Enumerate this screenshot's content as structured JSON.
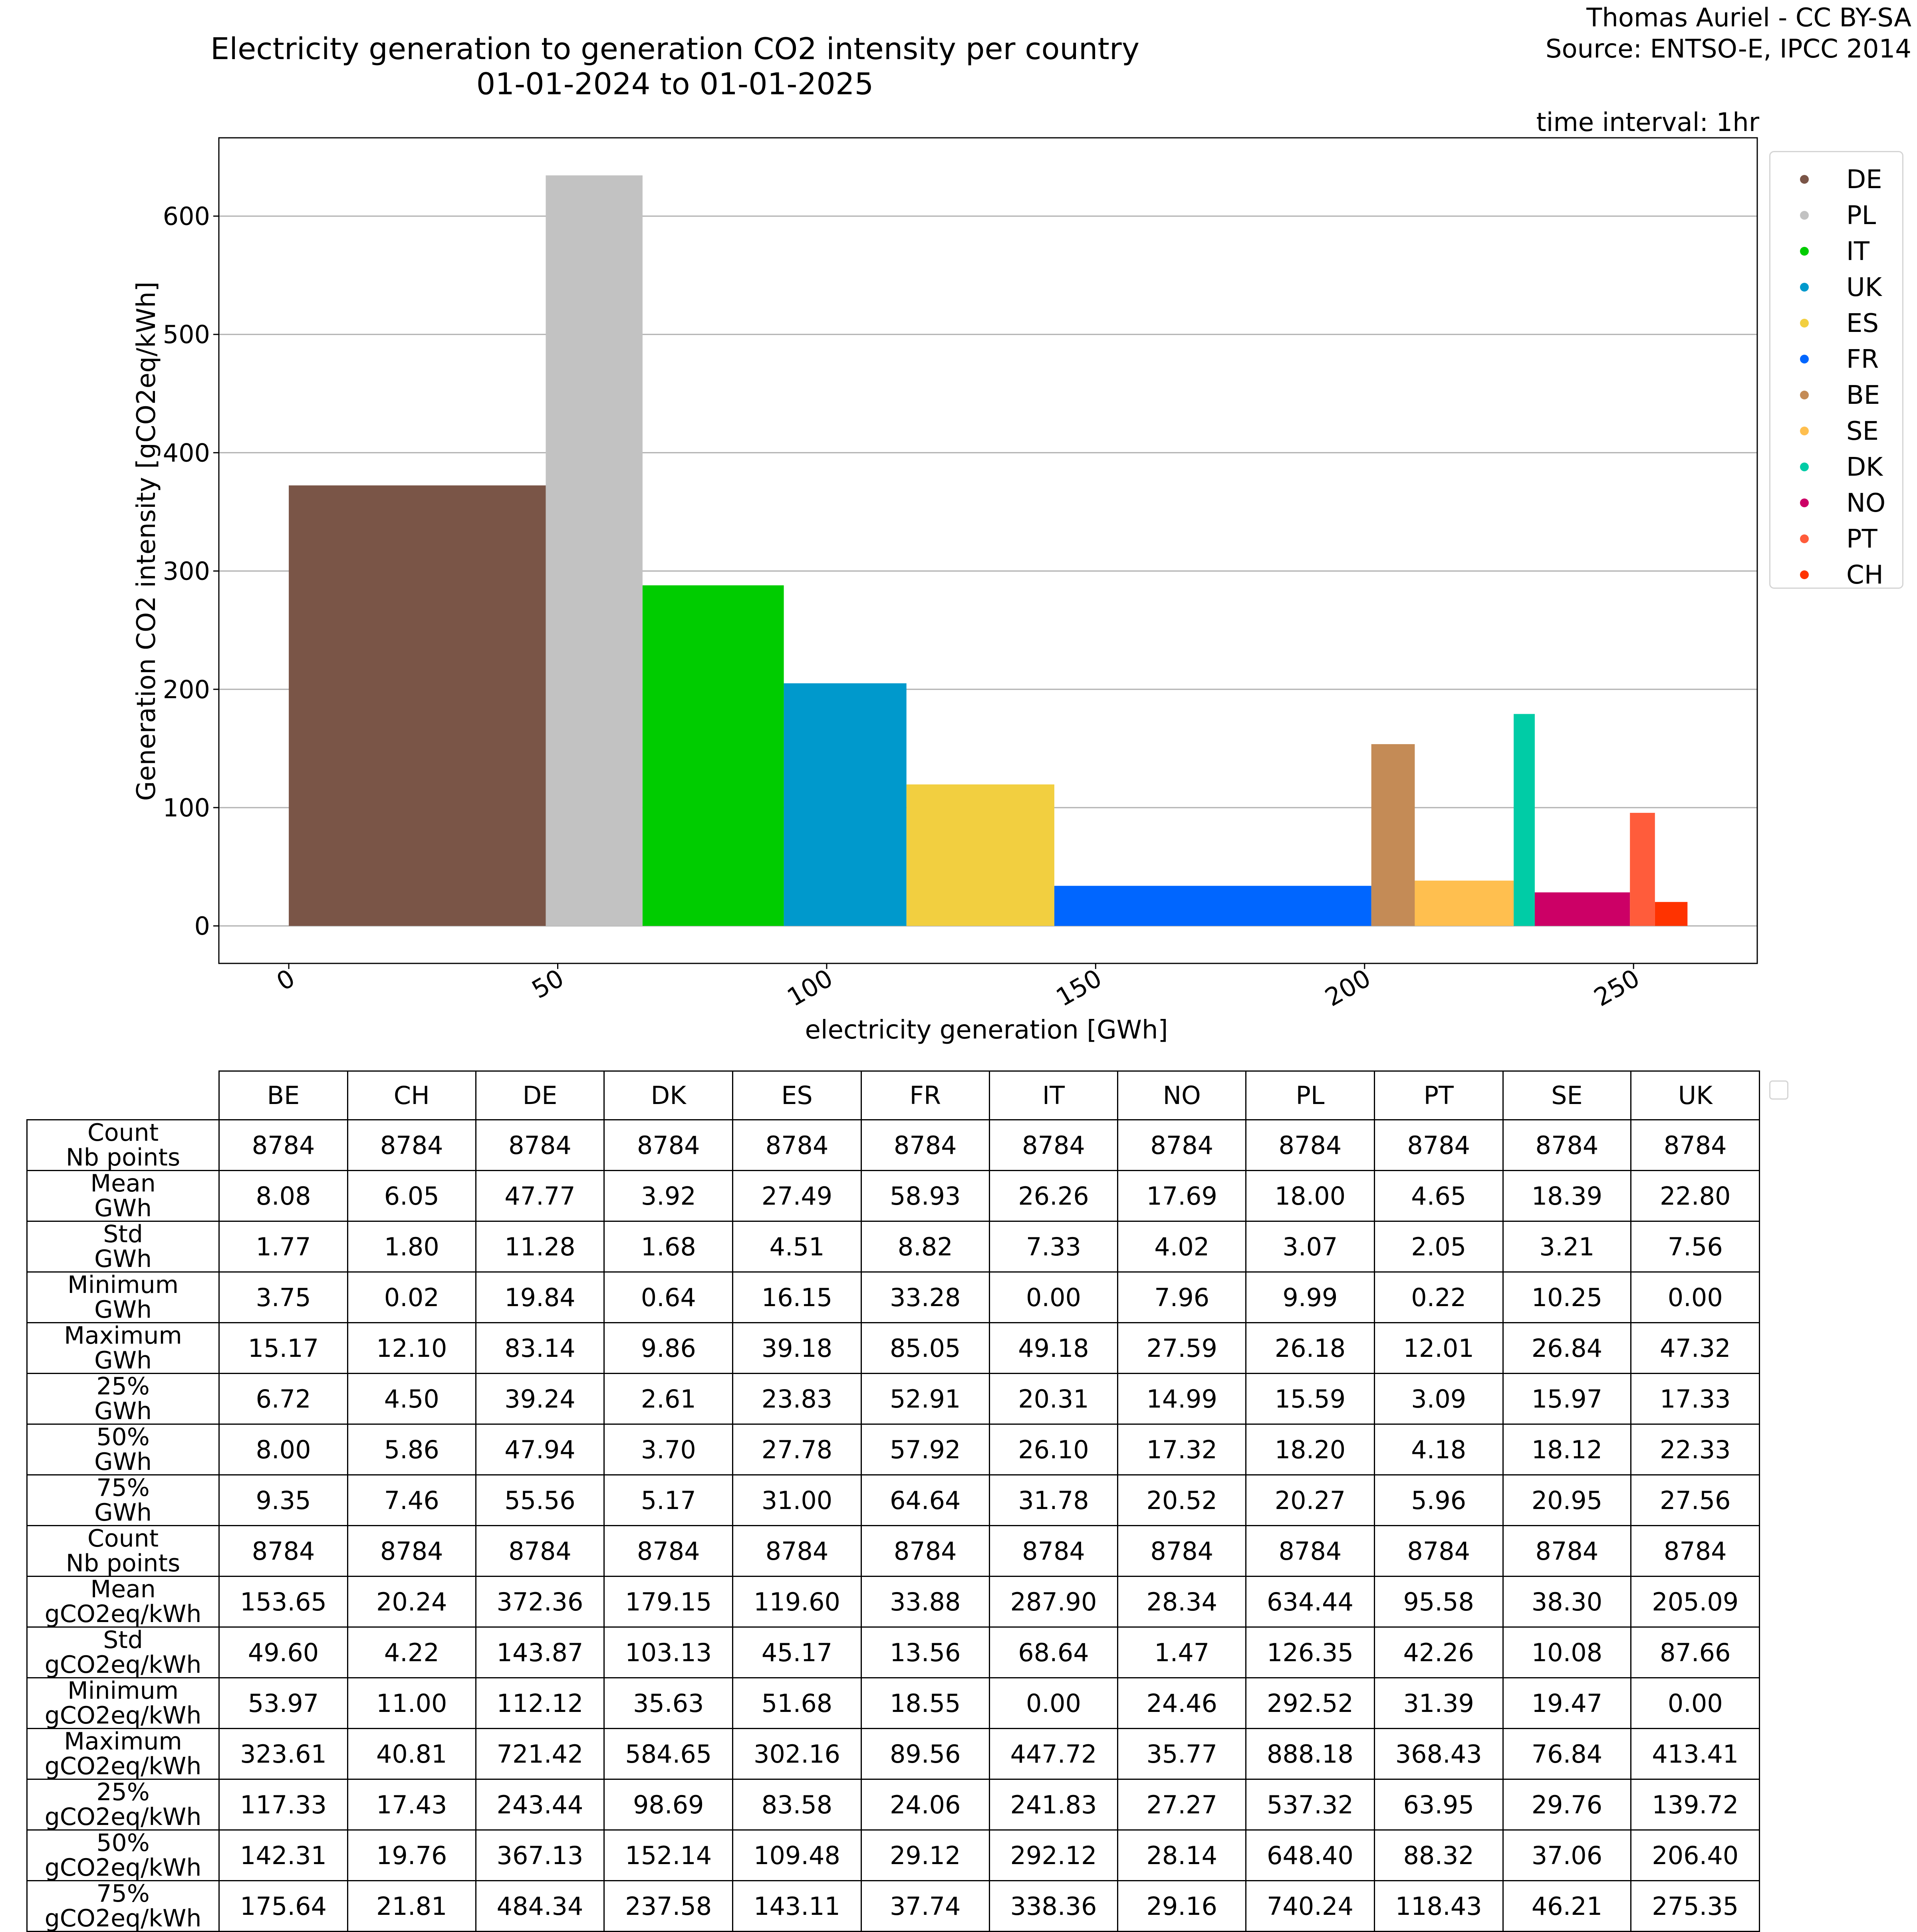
{
  "header": {
    "title_line1": "Electricity generation to generation CO2 intensity per country",
    "title_line2": "01-01-2024 to 01-01-2025",
    "credit_line1": "Thomas Auriel - CC BY-SA",
    "credit_line2": "Source: ENTSO-E, IPCC 2014",
    "interval": "time interval: 1hr"
  },
  "chart_data": {
    "type": "bar",
    "title": "Electricity generation to generation CO2 intensity per country",
    "subtitle": "01-01-2024 to 01-01-2025",
    "xlabel": "electricity generation [GWh]",
    "ylabel": "Generation CO2 intensity [gCO2eq/kWh]",
    "xlim": [
      -13,
      273
    ],
    "ylim": [
      -31.7,
      666.2
    ],
    "xticks": [
      0,
      50,
      100,
      150,
      200,
      250
    ],
    "yticks": [
      0,
      100,
      200,
      300,
      400,
      500,
      600
    ],
    "grid": "y",
    "legend_position": "right",
    "series": [
      {
        "name": "DE",
        "width": 47.77,
        "value": 372.36,
        "color": "#7a5547"
      },
      {
        "name": "PL",
        "width": 18.0,
        "value": 634.44,
        "color": "#c2c2c2"
      },
      {
        "name": "IT",
        "width": 26.26,
        "value": 287.9,
        "color": "#00cc00"
      },
      {
        "name": "UK",
        "width": 22.8,
        "value": 205.09,
        "color": "#0099cc"
      },
      {
        "name": "ES",
        "width": 27.49,
        "value": 119.6,
        "color": "#f2cf40"
      },
      {
        "name": "FR",
        "width": 58.93,
        "value": 33.88,
        "color": "#0066ff"
      },
      {
        "name": "BE",
        "width": 8.08,
        "value": 153.65,
        "color": "#c48b56"
      },
      {
        "name": "SE",
        "width": 18.39,
        "value": 38.3,
        "color": "#ffbf4f"
      },
      {
        "name": "DK",
        "width": 3.92,
        "value": 179.15,
        "color": "#00cca6"
      },
      {
        "name": "NO",
        "width": 17.69,
        "value": 28.34,
        "color": "#cc0066"
      },
      {
        "name": "PT",
        "width": 4.65,
        "value": 95.58,
        "color": "#ff5c3b"
      },
      {
        "name": "CH",
        "width": 6.05,
        "value": 20.24,
        "color": "#ff3300"
      }
    ]
  },
  "table": {
    "columns": [
      "BE",
      "CH",
      "DE",
      "DK",
      "ES",
      "FR",
      "IT",
      "NO",
      "PL",
      "PT",
      "SE",
      "UK"
    ],
    "rows": [
      {
        "label1": "Count",
        "label2": "Nb points",
        "values": [
          "8784",
          "8784",
          "8784",
          "8784",
          "8784",
          "8784",
          "8784",
          "8784",
          "8784",
          "8784",
          "8784",
          "8784"
        ]
      },
      {
        "label1": "Mean",
        "label2": "GWh",
        "values": [
          "8.08",
          "6.05",
          "47.77",
          "3.92",
          "27.49",
          "58.93",
          "26.26",
          "17.69",
          "18.00",
          "4.65",
          "18.39",
          "22.80"
        ]
      },
      {
        "label1": "Std",
        "label2": "GWh",
        "values": [
          "1.77",
          "1.80",
          "11.28",
          "1.68",
          "4.51",
          "8.82",
          "7.33",
          "4.02",
          "3.07",
          "2.05",
          "3.21",
          "7.56"
        ]
      },
      {
        "label1": "Minimum",
        "label2": "GWh",
        "values": [
          "3.75",
          "0.02",
          "19.84",
          "0.64",
          "16.15",
          "33.28",
          "0.00",
          "7.96",
          "9.99",
          "0.22",
          "10.25",
          "0.00"
        ]
      },
      {
        "label1": "Maximum",
        "label2": "GWh",
        "values": [
          "15.17",
          "12.10",
          "83.14",
          "9.86",
          "39.18",
          "85.05",
          "49.18",
          "27.59",
          "26.18",
          "12.01",
          "26.84",
          "47.32"
        ]
      },
      {
        "label1": "25%",
        "label2": "GWh",
        "values": [
          "6.72",
          "4.50",
          "39.24",
          "2.61",
          "23.83",
          "52.91",
          "20.31",
          "14.99",
          "15.59",
          "3.09",
          "15.97",
          "17.33"
        ]
      },
      {
        "label1": "50%",
        "label2": "GWh",
        "values": [
          "8.00",
          "5.86",
          "47.94",
          "3.70",
          "27.78",
          "57.92",
          "26.10",
          "17.32",
          "18.20",
          "4.18",
          "18.12",
          "22.33"
        ]
      },
      {
        "label1": "75%",
        "label2": "GWh",
        "values": [
          "9.35",
          "7.46",
          "55.56",
          "5.17",
          "31.00",
          "64.64",
          "31.78",
          "20.52",
          "20.27",
          "5.96",
          "20.95",
          "27.56"
        ]
      },
      {
        "label1": "Count",
        "label2": "Nb points",
        "values": [
          "8784",
          "8784",
          "8784",
          "8784",
          "8784",
          "8784",
          "8784",
          "8784",
          "8784",
          "8784",
          "8784",
          "8784"
        ]
      },
      {
        "label1": "Mean",
        "label2": "gCO2eq/kWh",
        "values": [
          "153.65",
          "20.24",
          "372.36",
          "179.15",
          "119.60",
          "33.88",
          "287.90",
          "28.34",
          "634.44",
          "95.58",
          "38.30",
          "205.09"
        ]
      },
      {
        "label1": "Std",
        "label2": "gCO2eq/kWh",
        "values": [
          "49.60",
          "4.22",
          "143.87",
          "103.13",
          "45.17",
          "13.56",
          "68.64",
          "1.47",
          "126.35",
          "42.26",
          "10.08",
          "87.66"
        ]
      },
      {
        "label1": "Minimum",
        "label2": "gCO2eq/kWh",
        "values": [
          "53.97",
          "11.00",
          "112.12",
          "35.63",
          "51.68",
          "18.55",
          "0.00",
          "24.46",
          "292.52",
          "31.39",
          "19.47",
          "0.00"
        ]
      },
      {
        "label1": "Maximum",
        "label2": "gCO2eq/kWh",
        "values": [
          "323.61",
          "40.81",
          "721.42",
          "584.65",
          "302.16",
          "89.56",
          "447.72",
          "35.77",
          "888.18",
          "368.43",
          "76.84",
          "413.41"
        ]
      },
      {
        "label1": "25%",
        "label2": "gCO2eq/kWh",
        "values": [
          "117.33",
          "17.43",
          "243.44",
          "98.69",
          "83.58",
          "24.06",
          "241.83",
          "27.27",
          "537.32",
          "63.95",
          "29.76",
          "139.72"
        ]
      },
      {
        "label1": "50%",
        "label2": "gCO2eq/kWh",
        "values": [
          "142.31",
          "19.76",
          "367.13",
          "152.14",
          "109.48",
          "29.12",
          "292.12",
          "28.14",
          "648.40",
          "88.32",
          "37.06",
          "206.40"
        ]
      },
      {
        "label1": "75%",
        "label2": "gCO2eq/kWh",
        "values": [
          "175.64",
          "21.81",
          "484.34",
          "237.58",
          "143.11",
          "37.74",
          "338.36",
          "29.16",
          "740.24",
          "118.43",
          "46.21",
          "275.35"
        ]
      }
    ]
  }
}
